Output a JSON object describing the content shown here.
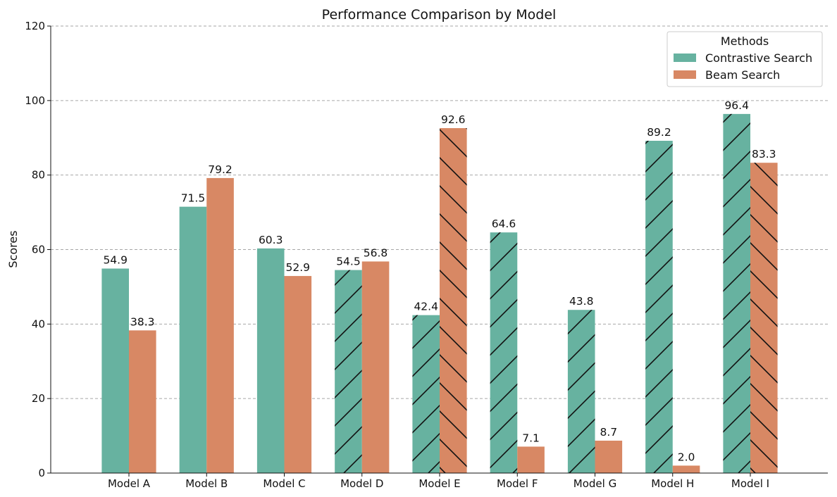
{
  "chart_data": {
    "type": "bar",
    "title": "Performance Comparison by Model",
    "xlabel": "",
    "ylabel": "Scores",
    "ylim": [
      0,
      120
    ],
    "yticks": [
      0,
      20,
      40,
      60,
      80,
      100,
      120
    ],
    "grid": "y-dashed",
    "categories": [
      "Model A",
      "Model B",
      "Model C",
      "Model D",
      "Model E",
      "Model F",
      "Model G",
      "Model H",
      "Model I"
    ],
    "legend": {
      "title": "Methods",
      "placement": "top-right"
    },
    "series": [
      {
        "name": "Contrastive Search",
        "color": "#67b2a0",
        "values": [
          54.9,
          71.5,
          60.3,
          54.5,
          42.4,
          64.6,
          43.8,
          89.2,
          96.4
        ],
        "labels": [
          "54.9",
          "71.5",
          "60.3",
          "54.5",
          "42.4",
          "64.6",
          "43.8",
          "89.2",
          "96.4"
        ],
        "hatch": [
          "none",
          "none",
          "none",
          "forward",
          "forward",
          "forward",
          "forward",
          "forward",
          "forward"
        ]
      },
      {
        "name": "Beam Search",
        "color": "#d88864",
        "values": [
          38.3,
          79.2,
          52.9,
          56.8,
          92.6,
          7.1,
          8.7,
          2.0,
          83.3
        ],
        "labels": [
          "38.3",
          "79.2",
          "52.9",
          "56.8",
          "92.6",
          "7.1",
          "8.7",
          "2.0",
          "83.3"
        ],
        "hatch": [
          "none",
          "none",
          "none",
          "none",
          "back",
          "none",
          "none",
          "none",
          "back"
        ]
      }
    ]
  }
}
